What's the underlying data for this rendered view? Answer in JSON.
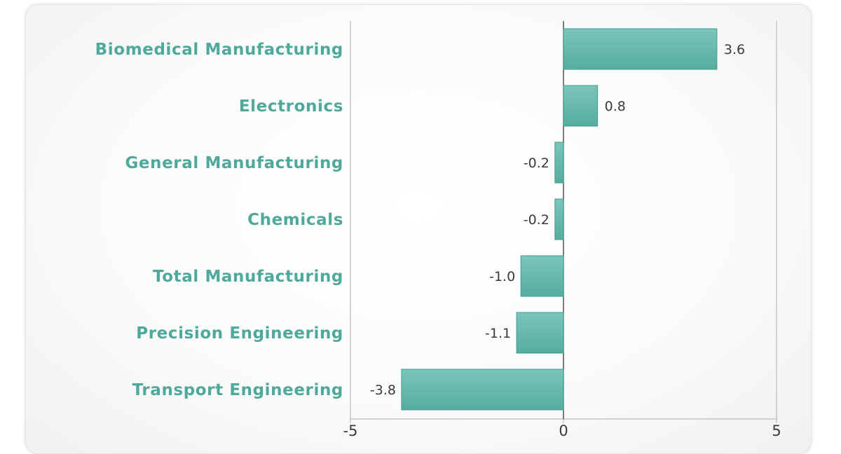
{
  "chart_data": {
    "type": "bar",
    "orientation": "horizontal",
    "categories": [
      "Biomedical Manufacturing",
      "Electronics",
      "General Manufacturing",
      "Chemicals",
      "Total Manufacturing",
      "Precision Engineering",
      "Transport Engineering"
    ],
    "values": [
      3.6,
      0.8,
      -0.2,
      -0.2,
      -1.0,
      -1.1,
      -3.8
    ],
    "value_labels": [
      "3.6",
      "0.8",
      "-0.2",
      "-0.2",
      "-1.0",
      "-1.1",
      "-3.8"
    ],
    "xlim": [
      -5,
      5
    ],
    "x_ticks": [
      -5,
      0,
      5
    ],
    "x_tick_labels": [
      "-5",
      "0",
      "5"
    ],
    "grid": false,
    "colors": {
      "bar": "#5fb5a9",
      "bar_edge": "#3f9a8d",
      "category_text": "#4fa89c",
      "value_text": "#3a3a3a",
      "axis": "#b9bcbc"
    }
  }
}
